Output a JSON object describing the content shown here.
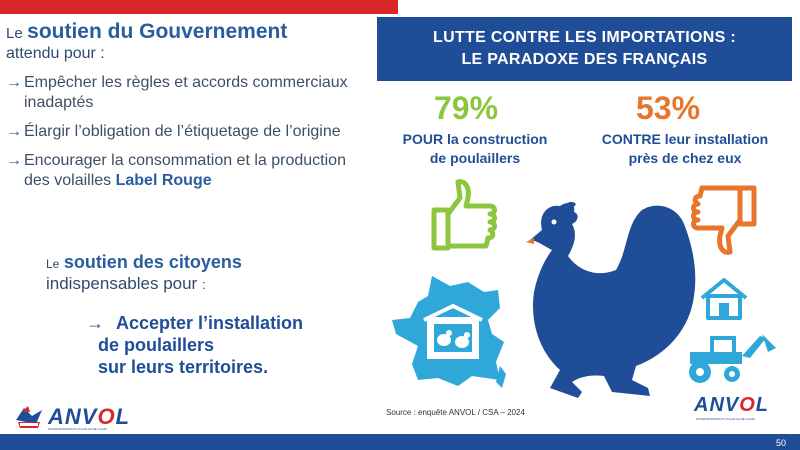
{
  "left": {
    "gov_prefix": "Le",
    "gov_emphasis": "soutien du Gouvernement",
    "gov_suffix": "attendu pour :",
    "bullets": [
      {
        "text": "Empêcher les règles et accords commerciaux inadaptés",
        "bold": ""
      },
      {
        "text": "Élargir l’obligation de l’étiquetage de l’origine",
        "bold": ""
      },
      {
        "text": "Encourager la consommation et la production des volailles ",
        "bold": "Label Rouge"
      }
    ],
    "arrow_glyph": "→",
    "citizen_prefix": "Le",
    "citizen_emphasis": "soutien des citoyens",
    "citizen_line2": "indispensables pour",
    "citizen_colon": ":",
    "action_arrow": "→",
    "action_line1": "Accepter l’installation",
    "action_line2": "de poulaillers",
    "action_line3": "sur leurs territoires."
  },
  "infographic": {
    "banner_line1": "LUTTE CONTRE LES IMPORTATIONS :",
    "banner_line2": "LE PARADOXE DES FRANÇAIS",
    "pour_value": "79%",
    "pour_line1": "POUR la construction",
    "pour_line2": "de poulaillers",
    "contre_value": "53%",
    "contre_line1": "CONTRE leur installation",
    "contre_line2": "près de chez eux",
    "source": "Source : enquête ANVOL / CSA – 2024"
  },
  "logos": {
    "anvol_main": "ANV",
    "anvol_accent": "O",
    "anvol_end": "L",
    "anvol_sub": "INTERPROFESSION VOLAILLE DE CHAIR"
  },
  "footer": {
    "page_number": "50"
  },
  "colors": {
    "brand_blue": "#1f4d97",
    "accent_red": "#d9262b",
    "green": "#8cc63f",
    "orange": "#e8752b",
    "cyan": "#2fa8d9"
  },
  "icons": [
    "thumbs-up-icon",
    "thumbs-down-icon",
    "hen-icon",
    "france-map-icon",
    "house-icon",
    "tractor-icon"
  ]
}
